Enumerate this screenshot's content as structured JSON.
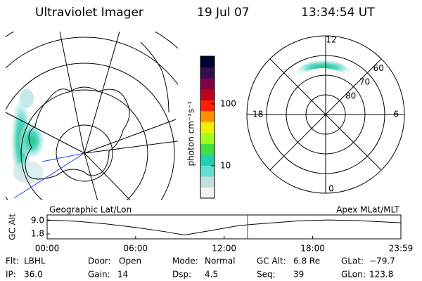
{
  "header": {
    "title": "Ultraviolet Imager",
    "date": "19 Jul 07",
    "time": "13:34:54 UT"
  },
  "colorbar": {
    "label": "photon cm⁻²s⁻¹",
    "scale": "log",
    "lim": [
      3,
      590
    ],
    "ticks": [
      10,
      100
    ],
    "colors": [
      "#f2f2f2",
      "#c8dede",
      "#60e0d0",
      "#20d0b0",
      "#40e040",
      "#a0ff20",
      "#f0f000",
      "#ff9000",
      "#ff2000",
      "#c00020",
      "#800040",
      "#301050",
      "#000030"
    ]
  },
  "polar": {
    "mlt_ticks": [
      12,
      18,
      6,
      0
    ],
    "lat_ticks": [
      60,
      70,
      80
    ]
  },
  "chart_data": {
    "type": "line",
    "ylabel": "GC Alt",
    "annotations": [
      "Geographic Lat/Lon",
      "Apex MLat/MLT"
    ],
    "x": [
      0,
      2,
      4,
      6,
      8,
      9.3,
      11,
      13,
      14,
      15,
      17,
      19,
      21,
      23.98
    ],
    "values": [
      9.3,
      8.6,
      7.2,
      5.3,
      3.0,
      1.2,
      3.5,
      6.3,
      7.0,
      7.6,
      8.8,
      9.3,
      9.0,
      7.8
    ],
    "color": "#000000",
    "current_time": 13.58,
    "current_color": "#ff0000",
    "xlim": [
      0,
      23.98
    ],
    "xticks": [
      {
        "value": 0,
        "label": "00:00"
      },
      {
        "value": 6,
        "label": "06:00"
      },
      {
        "value": 12,
        "label": "12:00"
      },
      {
        "value": 18,
        "label": "18:00"
      },
      {
        "value": 23.98,
        "label": "23:59"
      }
    ],
    "ylim": [
      -0.85,
      12.0
    ],
    "yticks": [
      {
        "value": 9.0,
        "label": "9.0"
      },
      {
        "value": 1.8,
        "label": "1.8"
      }
    ]
  },
  "info": [
    [
      {
        "label": "Flt:",
        "value": "LBHL"
      },
      {
        "label": "IP:",
        "value": "36.0"
      }
    ],
    [
      {
        "label": "Door:",
        "value": "Open"
      },
      {
        "label": "Gain:",
        "value": "14"
      }
    ],
    [
      {
        "label": "Mode:",
        "value": "Normal"
      },
      {
        "label": "Dsp:",
        "value": "4.5"
      }
    ],
    [
      {
        "label": "GC Alt:",
        "value": "6.8 Re"
      },
      {
        "label": "Seq:",
        "value": "39"
      }
    ],
    [
      {
        "label": "GLat:",
        "value": "−79.7"
      },
      {
        "label": "GLon:",
        "value": "123.8"
      }
    ]
  ]
}
